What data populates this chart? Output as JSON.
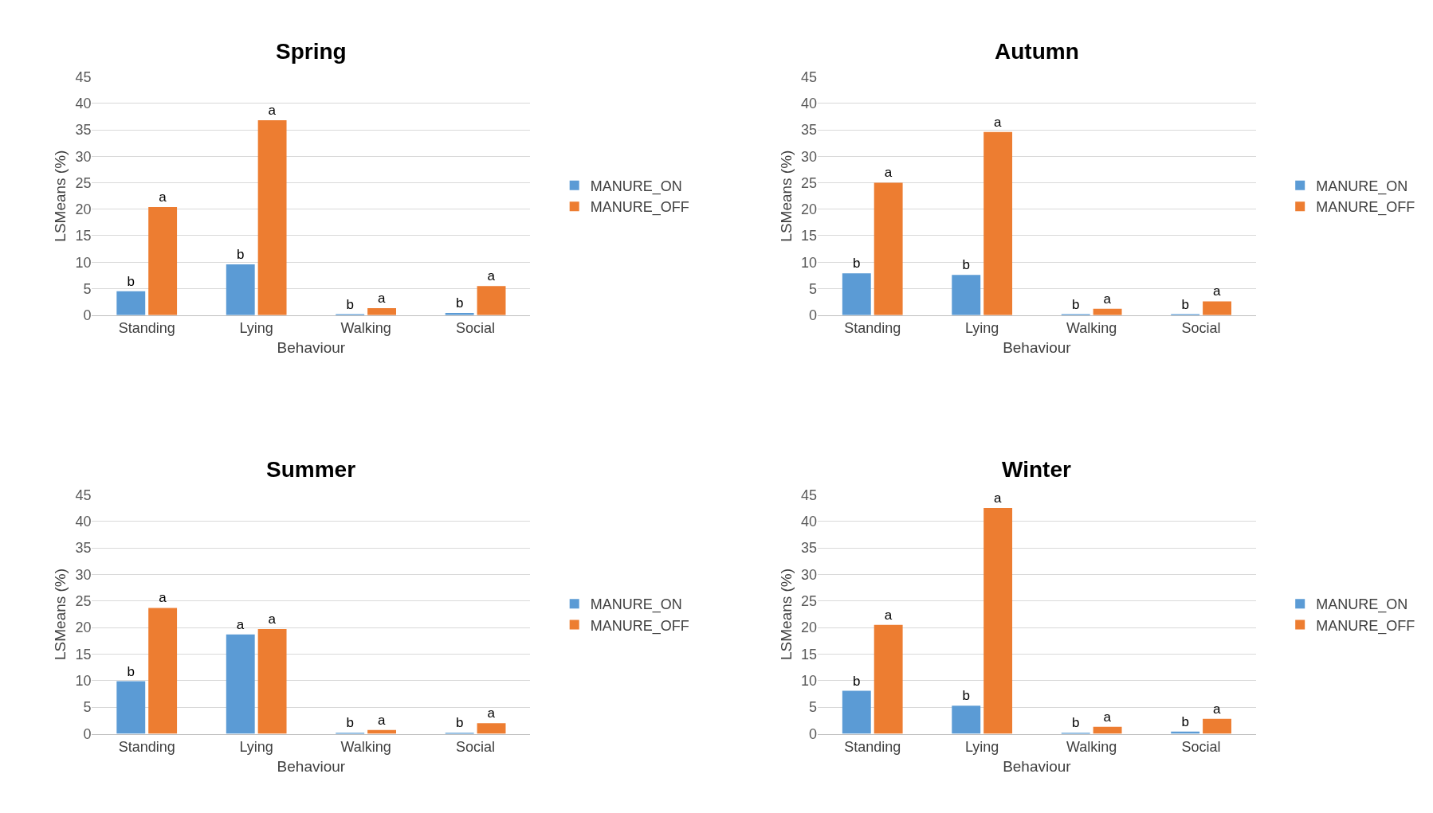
{
  "chart_data": [
    {
      "type": "bar",
      "title": "Spring",
      "xlabel": "Behaviour",
      "ylabel": "LSMeans (%)",
      "categories": [
        "Standing",
        "Lying",
        "Walking",
        "Social"
      ],
      "ylim": [
        0,
        45
      ],
      "yticks": [
        0,
        5,
        10,
        15,
        20,
        25,
        30,
        35,
        40,
        45
      ],
      "grid": "y",
      "legend": "right",
      "series": [
        {
          "name": "MANURE_ON",
          "color": "#5b9bd5",
          "values": [
            4.5,
            9.6,
            0.1,
            0.4
          ],
          "value_labels": [
            "b",
            "b",
            "b",
            "b"
          ]
        },
        {
          "name": "MANURE_OFF",
          "color": "#ed7d31",
          "values": [
            20.4,
            36.8,
            1.3,
            5.5
          ],
          "value_labels": [
            "a",
            "a",
            "a",
            "a"
          ]
        }
      ]
    },
    {
      "type": "bar",
      "title": "Autumn",
      "xlabel": "Behaviour",
      "ylabel": "LSMeans (%)",
      "categories": [
        "Standing",
        "Lying",
        "Walking",
        "Social"
      ],
      "ylim": [
        0,
        45
      ],
      "yticks": [
        0,
        5,
        10,
        15,
        20,
        25,
        30,
        35,
        40,
        45
      ],
      "grid": "y",
      "legend": "right",
      "series": [
        {
          "name": "MANURE_ON",
          "color": "#5b9bd5",
          "values": [
            7.9,
            7.6,
            0.1,
            0.1
          ],
          "value_labels": [
            "b",
            "b",
            "b",
            "b"
          ]
        },
        {
          "name": "MANURE_OFF",
          "color": "#ed7d31",
          "values": [
            25.0,
            34.6,
            1.2,
            2.6
          ],
          "value_labels": [
            "a",
            "a",
            "a",
            "a"
          ]
        }
      ]
    },
    {
      "type": "bar",
      "title": "Summer",
      "xlabel": "Behaviour",
      "ylabel": "LSMeans (%)",
      "categories": [
        "Standing",
        "Lying",
        "Walking",
        "Social"
      ],
      "ylim": [
        0,
        45
      ],
      "yticks": [
        0,
        5,
        10,
        15,
        20,
        25,
        30,
        35,
        40,
        45
      ],
      "grid": "y",
      "legend": "right",
      "series": [
        {
          "name": "MANURE_ON",
          "color": "#5b9bd5",
          "values": [
            9.9,
            18.7,
            0.1,
            0.1
          ],
          "value_labels": [
            "b",
            "a",
            "b",
            "b"
          ]
        },
        {
          "name": "MANURE_OFF",
          "color": "#ed7d31",
          "values": [
            23.7,
            19.7,
            0.7,
            2.0
          ],
          "value_labels": [
            "a",
            "a",
            "a",
            "a"
          ]
        }
      ]
    },
    {
      "type": "bar",
      "title": "Winter",
      "xlabel": "Behaviour",
      "ylabel": "LSMeans (%)",
      "categories": [
        "Standing",
        "Lying",
        "Walking",
        "Social"
      ],
      "ylim": [
        0,
        45
      ],
      "yticks": [
        0,
        5,
        10,
        15,
        20,
        25,
        30,
        35,
        40,
        45
      ],
      "grid": "y",
      "legend": "right",
      "series": [
        {
          "name": "MANURE_ON",
          "color": "#5b9bd5",
          "values": [
            8.1,
            5.3,
            0.2,
            0.4
          ],
          "value_labels": [
            "b",
            "b",
            "b",
            "b"
          ]
        },
        {
          "name": "MANURE_OFF",
          "color": "#ed7d31",
          "values": [
            20.5,
            42.5,
            1.3,
            2.8
          ],
          "value_labels": [
            "a",
            "a",
            "a",
            "a"
          ]
        }
      ]
    }
  ]
}
